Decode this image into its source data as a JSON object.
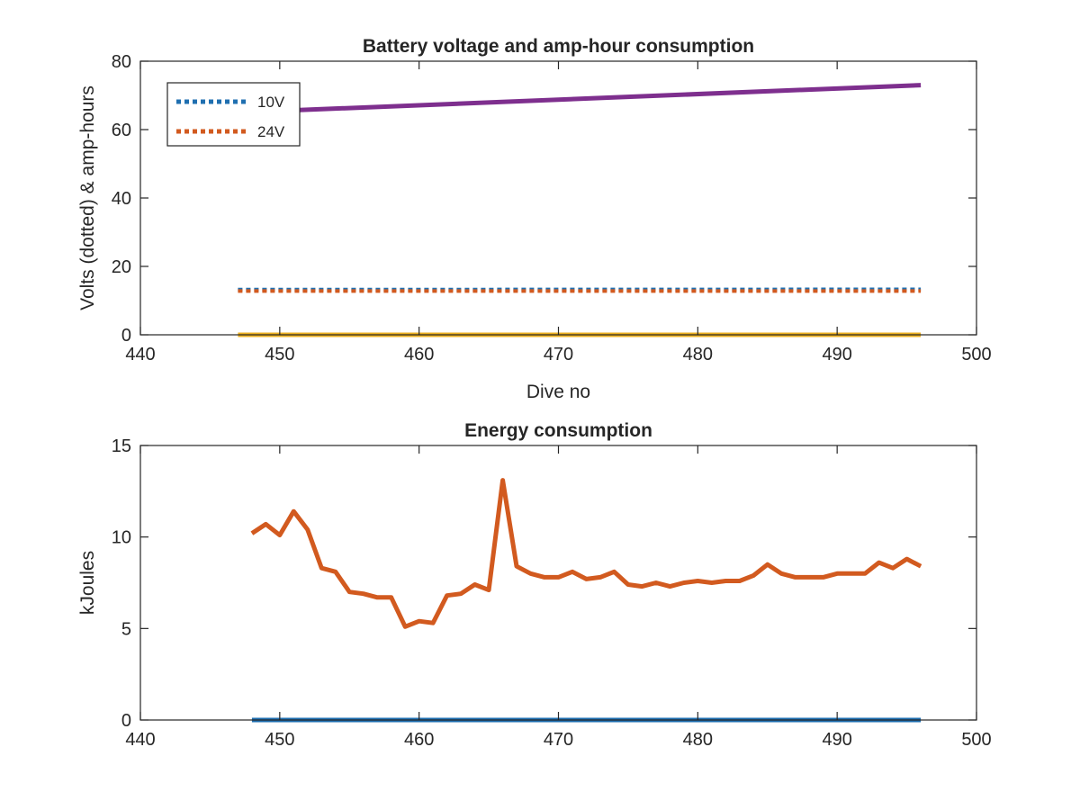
{
  "colors": {
    "blue": "#1f6fb0",
    "orange": "#d25a1f",
    "yellow": "#edb120",
    "purple": "#7e2f8e",
    "axis": "#262626",
    "background": "#ffffff"
  },
  "chart_data": [
    {
      "type": "line",
      "title": "Battery voltage and amp-hour consumption",
      "xlabel": "Dive no",
      "ylabel": "Volts (dotted) & amp-hours",
      "xlim": [
        440,
        500
      ],
      "ylim": [
        0,
        80
      ],
      "x_ticks": [
        "440",
        "450",
        "460",
        "470",
        "480",
        "490",
        "500"
      ],
      "y_ticks": [
        "0",
        "20",
        "40",
        "60",
        "80"
      ],
      "grid": false,
      "legend": {
        "position": "top-left",
        "entries": [
          "10V",
          "24V"
        ]
      },
      "series": [
        {
          "name": "10V",
          "style": "dotted",
          "color": "#1f6fb0",
          "x": [
            447,
            496
          ],
          "y": [
            13.2,
            13.3
          ]
        },
        {
          "name": "24V",
          "style": "dotted",
          "color": "#d25a1f",
          "x": [
            447,
            496
          ],
          "y": [
            12.8,
            12.8
          ]
        },
        {
          "style": "solid",
          "color": "#edb120",
          "x": [
            447,
            496
          ],
          "y": [
            0,
            0
          ]
        },
        {
          "style": "solid",
          "color": "#7e2f8e",
          "x": [
            447,
            496
          ],
          "y": [
            65,
            73
          ]
        }
      ]
    },
    {
      "type": "line",
      "title": "Energy consumption",
      "xlabel": "",
      "ylabel": "kJoules",
      "xlim": [
        440,
        500
      ],
      "ylim": [
        0,
        15
      ],
      "x_ticks": [
        "440",
        "450",
        "460",
        "470",
        "480",
        "490",
        "500"
      ],
      "y_ticks": [
        "0",
        "5",
        "10",
        "15"
      ],
      "grid": false,
      "series": [
        {
          "style": "solid",
          "color": "#d25a1f",
          "x": [
            448,
            449,
            450,
            451,
            452,
            453,
            454,
            455,
            456,
            457,
            458,
            459,
            460,
            461,
            462,
            463,
            464,
            465,
            466,
            467,
            468,
            469,
            470,
            471,
            472,
            473,
            474,
            475,
            476,
            477,
            478,
            479,
            480,
            481,
            482,
            483,
            484,
            485,
            486,
            487,
            488,
            489,
            490,
            491,
            492,
            493,
            494,
            495,
            496
          ],
          "y": [
            10.2,
            10.7,
            10.1,
            11.4,
            10.4,
            8.3,
            8.1,
            7.0,
            6.9,
            6.7,
            6.7,
            5.1,
            5.4,
            5.3,
            6.8,
            6.9,
            7.4,
            7.1,
            13.1,
            8.4,
            8.0,
            7.8,
            7.8,
            8.1,
            7.7,
            7.8,
            8.1,
            7.4,
            7.3,
            7.5,
            7.3,
            7.5,
            7.6,
            7.5,
            7.6,
            7.6,
            7.9,
            8.5,
            8.0,
            7.8,
            7.8,
            7.8,
            8.0,
            8.0,
            8.0,
            8.6,
            8.3,
            8.8,
            8.4
          ]
        },
        {
          "style": "solid",
          "color": "#1f6fb0",
          "x": [
            448,
            496
          ],
          "y": [
            0,
            0
          ]
        }
      ]
    }
  ]
}
